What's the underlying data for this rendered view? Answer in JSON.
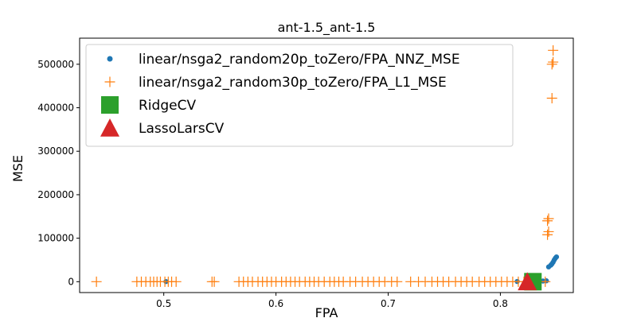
{
  "chart_data": {
    "type": "scatter",
    "title": "ant-1.5_ant-1.5",
    "xlabel": "FPA",
    "ylabel": "MSE",
    "xlim": [
      0.425,
      0.865
    ],
    "ylim": [
      -25000,
      560000
    ],
    "xticks": [
      0.5,
      0.6,
      0.7,
      0.8
    ],
    "yticks": [
      0,
      100000,
      200000,
      300000,
      400000,
      500000
    ],
    "grid": false,
    "legend_position": "top-left",
    "series": [
      {
        "name": "linear/nsga2_random20p_toZero/FPA_NNZ_MSE",
        "marker": "circle",
        "color": "#1f77b4",
        "points": [
          [
            0.502,
            300
          ],
          [
            0.815,
            500
          ],
          [
            0.823,
            800
          ],
          [
            0.828,
            900
          ],
          [
            0.833,
            1000
          ],
          [
            0.838,
            1500
          ],
          [
            0.841,
            2000
          ],
          [
            0.843,
            34000
          ],
          [
            0.845,
            38000
          ],
          [
            0.846,
            41000
          ],
          [
            0.847,
            45000
          ],
          [
            0.848,
            50000
          ],
          [
            0.849,
            54000
          ],
          [
            0.85,
            57000
          ]
        ]
      },
      {
        "name": "linear/nsga2_random30p_toZero/FPA_L1_MSE",
        "marker": "plus",
        "color": "#ff7f0e",
        "points": [
          [
            0.44,
            0
          ],
          [
            0.476,
            0
          ],
          [
            0.48,
            0
          ],
          [
            0.484,
            0
          ],
          [
            0.488,
            0
          ],
          [
            0.491,
            0
          ],
          [
            0.494,
            0
          ],
          [
            0.497,
            0
          ],
          [
            0.501,
            0
          ],
          [
            0.504,
            0
          ],
          [
            0.507,
            0
          ],
          [
            0.511,
            0
          ],
          [
            0.543,
            0
          ],
          [
            0.545,
            0
          ],
          [
            0.567,
            0
          ],
          [
            0.571,
            0
          ],
          [
            0.575,
            0
          ],
          [
            0.579,
            0
          ],
          [
            0.584,
            0
          ],
          [
            0.588,
            0
          ],
          [
            0.592,
            0
          ],
          [
            0.596,
            0
          ],
          [
            0.6,
            0
          ],
          [
            0.605,
            0
          ],
          [
            0.609,
            0
          ],
          [
            0.613,
            0
          ],
          [
            0.617,
            0
          ],
          [
            0.621,
            0
          ],
          [
            0.626,
            0
          ],
          [
            0.63,
            0
          ],
          [
            0.634,
            0
          ],
          [
            0.638,
            0
          ],
          [
            0.643,
            0
          ],
          [
            0.648,
            0
          ],
          [
            0.652,
            0
          ],
          [
            0.656,
            0
          ],
          [
            0.66,
            0
          ],
          [
            0.666,
            0
          ],
          [
            0.671,
            0
          ],
          [
            0.677,
            0
          ],
          [
            0.682,
            0
          ],
          [
            0.687,
            0
          ],
          [
            0.692,
            0
          ],
          [
            0.697,
            0
          ],
          [
            0.703,
            0
          ],
          [
            0.708,
            0
          ],
          [
            0.72,
            0
          ],
          [
            0.727,
            0
          ],
          [
            0.733,
            0
          ],
          [
            0.739,
            0
          ],
          [
            0.744,
            0
          ],
          [
            0.749,
            0
          ],
          [
            0.754,
            0
          ],
          [
            0.76,
            0
          ],
          [
            0.765,
            0
          ],
          [
            0.77,
            0
          ],
          [
            0.775,
            0
          ],
          [
            0.781,
            0
          ],
          [
            0.786,
            0
          ],
          [
            0.791,
            0
          ],
          [
            0.796,
            0
          ],
          [
            0.801,
            0
          ],
          [
            0.806,
            0
          ],
          [
            0.811,
            0
          ],
          [
            0.816,
            0
          ],
          [
            0.821,
            0
          ],
          [
            0.826,
            0
          ],
          [
            0.831,
            0
          ],
          [
            0.836,
            0
          ],
          [
            0.84,
            0
          ],
          [
            0.842,
            108000
          ],
          [
            0.843,
            115000
          ],
          [
            0.842,
            140000
          ],
          [
            0.843,
            145000
          ],
          [
            0.846,
            422000
          ],
          [
            0.846,
            500000
          ],
          [
            0.847,
            505000
          ],
          [
            0.847,
            532000
          ]
        ]
      },
      {
        "name": "RidgeCV",
        "marker": "square",
        "color": "#2ca02c",
        "points": [
          [
            0.829,
            0
          ]
        ]
      },
      {
        "name": "LassoLarsCV",
        "marker": "triangle",
        "color": "#d62728",
        "points": [
          [
            0.824,
            0
          ]
        ]
      }
    ]
  }
}
